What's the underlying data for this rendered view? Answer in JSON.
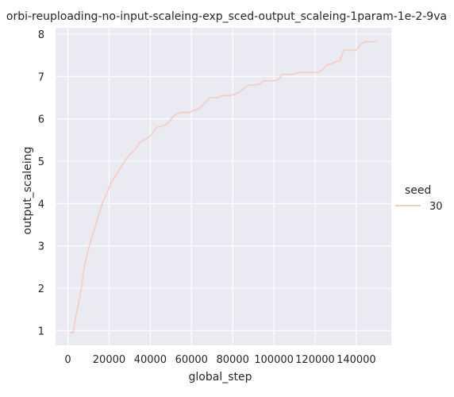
{
  "chart_data": {
    "type": "line",
    "title": "orbi-reuploading-no-input-scaleing-exp_sced-output_scaleing-1param-1e-2-9va",
    "xlabel": "global_step",
    "ylabel": "output_scaleing",
    "xlim": [
      -6000,
      157000
    ],
    "ylim": [
      0.65,
      8.15
    ],
    "xticks": [
      0,
      20000,
      40000,
      60000,
      80000,
      100000,
      120000,
      140000
    ],
    "yticks": [
      1,
      2,
      3,
      4,
      5,
      6,
      7,
      8
    ],
    "grid": true,
    "legend": {
      "title": "seed",
      "placement": "right",
      "entries": [
        "30"
      ]
    },
    "series": [
      {
        "name": "30",
        "color": "#f2cdc0",
        "x": [
          1000,
          2500,
          3500,
          5000,
          6500,
          8000,
          9500,
          11000,
          13000,
          15000,
          17000,
          19000,
          21000,
          23000,
          25000,
          27000,
          29000,
          31000,
          33000,
          35000,
          37000,
          39000,
          41000,
          43000,
          45000,
          47000,
          49000,
          51000,
          53000,
          55000,
          57000,
          59000,
          61000,
          63000,
          65000,
          67000,
          69000,
          71000,
          73000,
          75000,
          77000,
          79000,
          81000,
          83000,
          85000,
          87000,
          89000,
          91000,
          93000,
          95000,
          97000,
          100000,
          102000,
          104000,
          106000,
          108000,
          110000,
          112000,
          114000,
          116000,
          118000,
          120000,
          122000,
          124000,
          126000,
          128000,
          130000,
          132000,
          134000,
          136000,
          138000,
          140000,
          142000,
          144000,
          146000,
          148000,
          150000
        ],
        "y": [
          0.95,
          0.95,
          1.25,
          1.6,
          2.0,
          2.5,
          2.85,
          3.1,
          3.4,
          3.75,
          4.05,
          4.25,
          4.5,
          4.65,
          4.8,
          4.95,
          5.1,
          5.2,
          5.3,
          5.45,
          5.5,
          5.55,
          5.65,
          5.8,
          5.82,
          5.85,
          5.92,
          6.05,
          6.12,
          6.15,
          6.15,
          6.15,
          6.2,
          6.22,
          6.3,
          6.4,
          6.5,
          6.5,
          6.5,
          6.55,
          6.55,
          6.55,
          6.58,
          6.62,
          6.7,
          6.78,
          6.8,
          6.8,
          6.82,
          6.9,
          6.9,
          6.9,
          6.92,
          7.05,
          7.05,
          7.05,
          7.05,
          7.1,
          7.1,
          7.1,
          7.1,
          7.1,
          7.1,
          7.18,
          7.28,
          7.3,
          7.35,
          7.38,
          7.62,
          7.62,
          7.62,
          7.62,
          7.75,
          7.82,
          7.82,
          7.82,
          7.82
        ]
      }
    ]
  }
}
